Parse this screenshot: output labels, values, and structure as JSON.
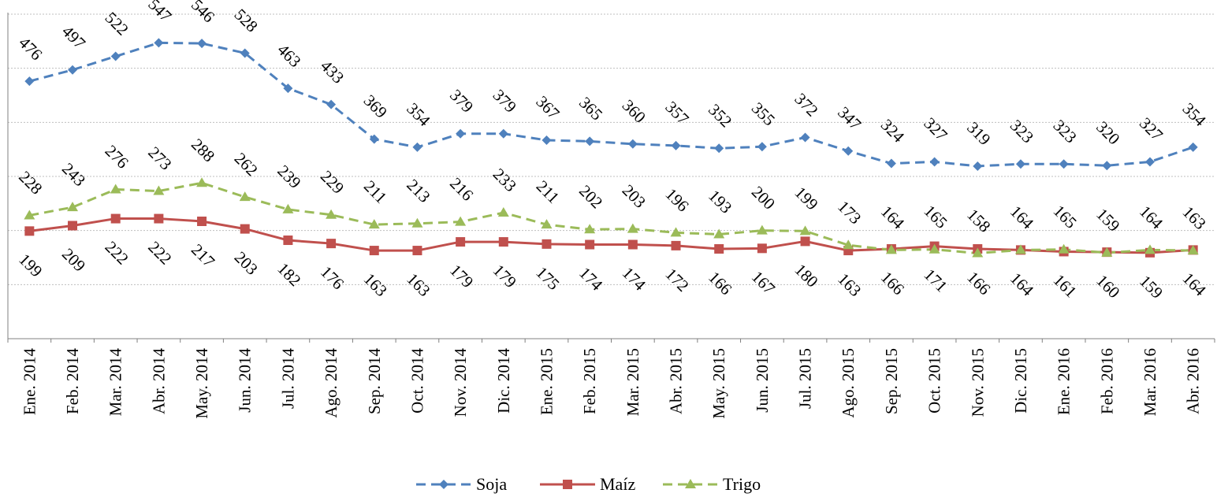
{
  "chart_data": {
    "type": "line",
    "title": "",
    "xlabel": "",
    "ylabel": "",
    "ylim": [
      0,
      600
    ],
    "y_gridlines": [
      100,
      200,
      300,
      400,
      500,
      600
    ],
    "y_tick_labels": "hidden",
    "grid": "horizontal dotted",
    "legend_position": "bottom",
    "categories": [
      "Ene. 2014",
      "Feb. 2014",
      "Mar. 2014",
      "Abr. 2014",
      "May. 2014",
      "Jun. 2014",
      "Jul. 2014",
      "Ago. 2014",
      "Sep. 2014",
      "Oct. 2014",
      "Nov. 2014",
      "Dic. 2014",
      "Ene. 2015",
      "Feb. 2015",
      "Mar. 2015",
      "Abr. 2015",
      "May. 2015",
      "Jun. 2015",
      "Jul. 2015",
      "Ago. 2015",
      "Sep. 2015",
      "Oct. 2015",
      "Nov. 2015",
      "Dic. 2015",
      "Ene. 2016",
      "Feb. 2016",
      "Mar. 2016",
      "Abr. 2016"
    ],
    "series": [
      {
        "name": "Soja",
        "color": "#4f81bd",
        "marker": "diamond",
        "dash": "dashed",
        "label_position": "above",
        "values": [
          476,
          497,
          522,
          547,
          546,
          528,
          463,
          433,
          369,
          354,
          379,
          379,
          367,
          365,
          360,
          357,
          352,
          355,
          372,
          347,
          324,
          327,
          319,
          323,
          323,
          320,
          327,
          354
        ]
      },
      {
        "name": "Maíz",
        "color": "#c0504d",
        "marker": "square",
        "dash": "solid",
        "label_position": "below",
        "values": [
          199,
          209,
          222,
          222,
          217,
          203,
          182,
          176,
          163,
          163,
          179,
          179,
          175,
          174,
          174,
          172,
          166,
          167,
          180,
          163,
          166,
          171,
          166,
          164,
          161,
          160,
          159,
          164
        ]
      },
      {
        "name": "Trigo",
        "color": "#9bbb59",
        "marker": "triangle",
        "dash": "dashed",
        "label_position": "above",
        "values": [
          228,
          243,
          276,
          273,
          288,
          262,
          239,
          229,
          211,
          213,
          216,
          233,
          211,
          202,
          203,
          196,
          193,
          200,
          199,
          173,
          164,
          165,
          158,
          164,
          165,
          159,
          164,
          163
        ]
      }
    ]
  }
}
